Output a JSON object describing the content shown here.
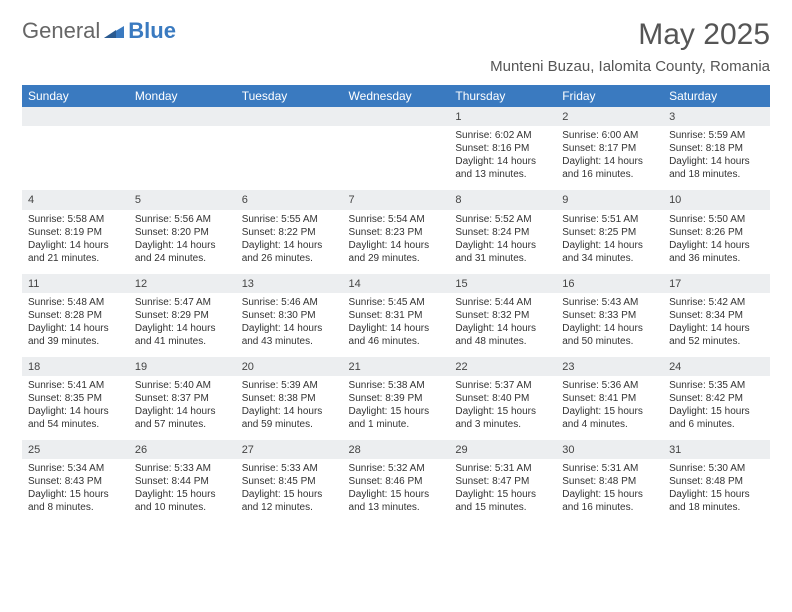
{
  "logo": {
    "text1": "General",
    "text2": "Blue"
  },
  "title": "May 2025",
  "location": "Munteni Buzau, Ialomita County, Romania",
  "colors": {
    "header_bg": "#3a7ac0",
    "header_text": "#ffffff",
    "daynum_bg": "#eceef0",
    "body_text": "#333333"
  },
  "weekdays": [
    "Sunday",
    "Monday",
    "Tuesday",
    "Wednesday",
    "Thursday",
    "Friday",
    "Saturday"
  ],
  "weeks": [
    [
      null,
      null,
      null,
      null,
      {
        "n": "1",
        "sr": "6:02 AM",
        "ss": "8:16 PM",
        "dl": "14 hours and 13 minutes."
      },
      {
        "n": "2",
        "sr": "6:00 AM",
        "ss": "8:17 PM",
        "dl": "14 hours and 16 minutes."
      },
      {
        "n": "3",
        "sr": "5:59 AM",
        "ss": "8:18 PM",
        "dl": "14 hours and 18 minutes."
      }
    ],
    [
      {
        "n": "4",
        "sr": "5:58 AM",
        "ss": "8:19 PM",
        "dl": "14 hours and 21 minutes."
      },
      {
        "n": "5",
        "sr": "5:56 AM",
        "ss": "8:20 PM",
        "dl": "14 hours and 24 minutes."
      },
      {
        "n": "6",
        "sr": "5:55 AM",
        "ss": "8:22 PM",
        "dl": "14 hours and 26 minutes."
      },
      {
        "n": "7",
        "sr": "5:54 AM",
        "ss": "8:23 PM",
        "dl": "14 hours and 29 minutes."
      },
      {
        "n": "8",
        "sr": "5:52 AM",
        "ss": "8:24 PM",
        "dl": "14 hours and 31 minutes."
      },
      {
        "n": "9",
        "sr": "5:51 AM",
        "ss": "8:25 PM",
        "dl": "14 hours and 34 minutes."
      },
      {
        "n": "10",
        "sr": "5:50 AM",
        "ss": "8:26 PM",
        "dl": "14 hours and 36 minutes."
      }
    ],
    [
      {
        "n": "11",
        "sr": "5:48 AM",
        "ss": "8:28 PM",
        "dl": "14 hours and 39 minutes."
      },
      {
        "n": "12",
        "sr": "5:47 AM",
        "ss": "8:29 PM",
        "dl": "14 hours and 41 minutes."
      },
      {
        "n": "13",
        "sr": "5:46 AM",
        "ss": "8:30 PM",
        "dl": "14 hours and 43 minutes."
      },
      {
        "n": "14",
        "sr": "5:45 AM",
        "ss": "8:31 PM",
        "dl": "14 hours and 46 minutes."
      },
      {
        "n": "15",
        "sr": "5:44 AM",
        "ss": "8:32 PM",
        "dl": "14 hours and 48 minutes."
      },
      {
        "n": "16",
        "sr": "5:43 AM",
        "ss": "8:33 PM",
        "dl": "14 hours and 50 minutes."
      },
      {
        "n": "17",
        "sr": "5:42 AM",
        "ss": "8:34 PM",
        "dl": "14 hours and 52 minutes."
      }
    ],
    [
      {
        "n": "18",
        "sr": "5:41 AM",
        "ss": "8:35 PM",
        "dl": "14 hours and 54 minutes."
      },
      {
        "n": "19",
        "sr": "5:40 AM",
        "ss": "8:37 PM",
        "dl": "14 hours and 57 minutes."
      },
      {
        "n": "20",
        "sr": "5:39 AM",
        "ss": "8:38 PM",
        "dl": "14 hours and 59 minutes."
      },
      {
        "n": "21",
        "sr": "5:38 AM",
        "ss": "8:39 PM",
        "dl": "15 hours and 1 minute."
      },
      {
        "n": "22",
        "sr": "5:37 AM",
        "ss": "8:40 PM",
        "dl": "15 hours and 3 minutes."
      },
      {
        "n": "23",
        "sr": "5:36 AM",
        "ss": "8:41 PM",
        "dl": "15 hours and 4 minutes."
      },
      {
        "n": "24",
        "sr": "5:35 AM",
        "ss": "8:42 PM",
        "dl": "15 hours and 6 minutes."
      }
    ],
    [
      {
        "n": "25",
        "sr": "5:34 AM",
        "ss": "8:43 PM",
        "dl": "15 hours and 8 minutes."
      },
      {
        "n": "26",
        "sr": "5:33 AM",
        "ss": "8:44 PM",
        "dl": "15 hours and 10 minutes."
      },
      {
        "n": "27",
        "sr": "5:33 AM",
        "ss": "8:45 PM",
        "dl": "15 hours and 12 minutes."
      },
      {
        "n": "28",
        "sr": "5:32 AM",
        "ss": "8:46 PM",
        "dl": "15 hours and 13 minutes."
      },
      {
        "n": "29",
        "sr": "5:31 AM",
        "ss": "8:47 PM",
        "dl": "15 hours and 15 minutes."
      },
      {
        "n": "30",
        "sr": "5:31 AM",
        "ss": "8:48 PM",
        "dl": "15 hours and 16 minutes."
      },
      {
        "n": "31",
        "sr": "5:30 AM",
        "ss": "8:48 PM",
        "dl": "15 hours and 18 minutes."
      }
    ]
  ],
  "labels": {
    "sunrise": "Sunrise: ",
    "sunset": "Sunset: ",
    "daylight": "Daylight: "
  }
}
